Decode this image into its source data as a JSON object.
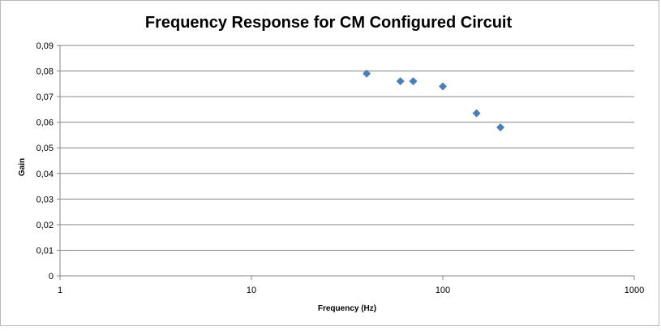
{
  "chart_data": {
    "type": "scatter",
    "title": "Frequency  Response for CM Configured Circuit",
    "xlabel": "Frequency (Hz)",
    "ylabel": "Gain",
    "x_scale": "log",
    "xlim": [
      1,
      1000
    ],
    "ylim": [
      0,
      0.09
    ],
    "x_ticks": [
      1,
      10,
      100,
      1000
    ],
    "x_tick_labels": [
      "1",
      "10",
      "100",
      "1000"
    ],
    "y_ticks": [
      0,
      0.01,
      0.02,
      0.03,
      0.04,
      0.05,
      0.06,
      0.07,
      0.08,
      0.09
    ],
    "y_tick_labels": [
      "0",
      "0,01",
      "0,02",
      "0,03",
      "0,04",
      "0,05",
      "0,06",
      "0,07",
      "0,08",
      "0,09"
    ],
    "grid": "horizontal",
    "legend": "none",
    "marker": "diamond",
    "marker_color": "#4a7ebb",
    "series": [
      {
        "x": [
          40,
          60,
          70,
          100,
          150,
          200
        ],
        "y": [
          0.079,
          0.076,
          0.076,
          0.074,
          0.0635,
          0.058
        ]
      }
    ]
  }
}
